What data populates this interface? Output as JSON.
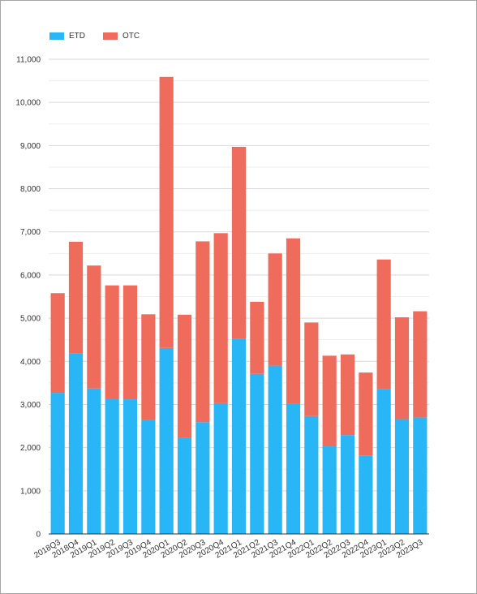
{
  "chart_data": {
    "type": "bar",
    "stacked": true,
    "categories": [
      "2018Q3",
      "2018Q4",
      "2019Q1",
      "2019Q2",
      "2019Q3",
      "2019Q4",
      "2020Q1",
      "2020Q2",
      "2020Q3",
      "2020Q4",
      "2021Q1",
      "2021Q2",
      "2021Q3",
      "2021Q4",
      "2022Q1",
      "2022Q2",
      "2022Q3",
      "2022Q4",
      "2023Q1",
      "2023Q2",
      "2023Q3"
    ],
    "series": [
      {
        "name": "ETD",
        "color": "#29b6f6",
        "values": [
          3270,
          4180,
          3370,
          3140,
          3120,
          2650,
          4310,
          2230,
          2590,
          3030,
          4520,
          3710,
          3900,
          3010,
          2730,
          2030,
          2290,
          1820,
          3350,
          2660,
          2700
        ]
      },
      {
        "name": "OTC",
        "color": "#ef6b5c",
        "values": [
          2310,
          2590,
          2850,
          2620,
          2640,
          2440,
          6280,
          2850,
          4190,
          3940,
          4450,
          1670,
          2600,
          3840,
          2170,
          2100,
          1870,
          1920,
          3010,
          2360,
          2460
        ]
      }
    ],
    "y_ticks": [
      "0",
      "1,000",
      "2,000",
      "3,000",
      "4,000",
      "5,000",
      "6,000",
      "7,000",
      "8,000",
      "9,000",
      "10,000",
      "11,000"
    ],
    "ylim": [
      0,
      11000
    ],
    "grid": true,
    "legend_position": "top-left",
    "title": "",
    "xlabel": "",
    "ylabel": ""
  }
}
